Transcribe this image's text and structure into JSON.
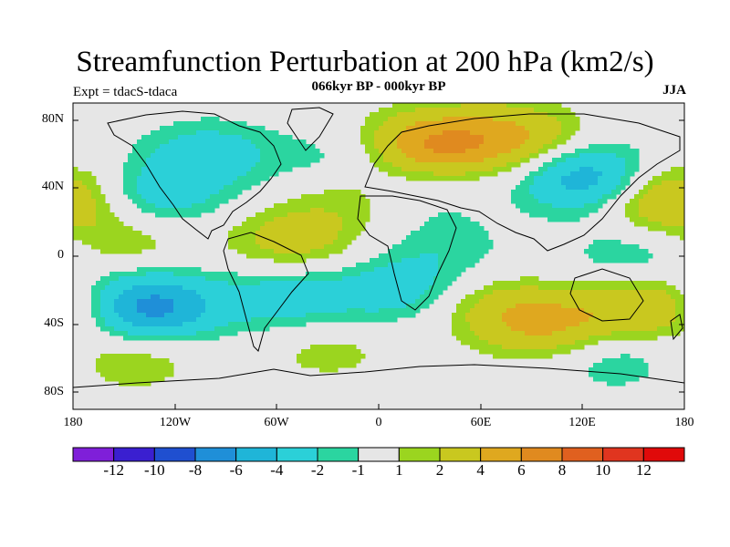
{
  "title": "Streamfunction Perturbation at 200 hPa (km2/s)",
  "subtitle": "066kyr BP - 000kyr BP",
  "experiment": "Expt = tdacS-tdaca",
  "season": "JJA",
  "lat_labels": [
    "80N",
    "40N",
    "0",
    "40S",
    "80S"
  ],
  "lon_labels": [
    "180",
    "120W",
    "60W",
    "0",
    "60E",
    "120E",
    "180"
  ],
  "colorbar": {
    "labels": [
      "-12",
      "-10",
      "-8",
      "-6",
      "-4",
      "-2",
      "-1",
      "1",
      "2",
      "4",
      "6",
      "8",
      "10",
      "12"
    ],
    "colors": [
      "#7f1fd9",
      "#3a1fd0",
      "#1f4fd0",
      "#1f8fd8",
      "#1fb5d8",
      "#2bd0d8",
      "#2bd5a0",
      "#e6e6e6",
      "#9bd51f",
      "#c9c81f",
      "#dfa81f",
      "#e08a1f",
      "#e0601f",
      "#e0351f",
      "#e00a0a"
    ]
  },
  "field_anomalies": [
    {
      "lon": -100,
      "lat": 60,
      "value": -3
    },
    {
      "lon": -130,
      "lat": 35,
      "value": -3
    },
    {
      "lon": -150,
      "lat": 10,
      "value": 2
    },
    {
      "lon": -135,
      "lat": -30,
      "value": -7
    },
    {
      "lon": -145,
      "lat": -60,
      "value": 2
    },
    {
      "lon": -50,
      "lat": 10,
      "value": 3
    },
    {
      "lon": -55,
      "lat": -25,
      "value": -3
    },
    {
      "lon": -30,
      "lat": -55,
      "value": 1.5
    },
    {
      "lon": -20,
      "lat": 55,
      "value": -2
    },
    {
      "lon": -10,
      "lat": 38,
      "value": 2.5
    },
    {
      "lon": 30,
      "lat": 65,
      "value": 6
    },
    {
      "lon": 80,
      "lat": 70,
      "value": 4
    },
    {
      "lon": 20,
      "lat": 40,
      "value": -2
    },
    {
      "lon": 40,
      "lat": 5,
      "value": -1.5
    },
    {
      "lon": 10,
      "lat": -20,
      "value": -3
    },
    {
      "lon": 65,
      "lat": -30,
      "value": 2
    },
    {
      "lon": 100,
      "lat": -40,
      "value": 4
    },
    {
      "lon": 160,
      "lat": -30,
      "value": 4
    },
    {
      "lon": 125,
      "lat": 45,
      "value": -6
    },
    {
      "lon": 165,
      "lat": 35,
      "value": 5
    },
    {
      "lon": 150,
      "lat": 0,
      "value": -2
    },
    {
      "lon": 140,
      "lat": -60,
      "value": -2
    }
  ]
}
